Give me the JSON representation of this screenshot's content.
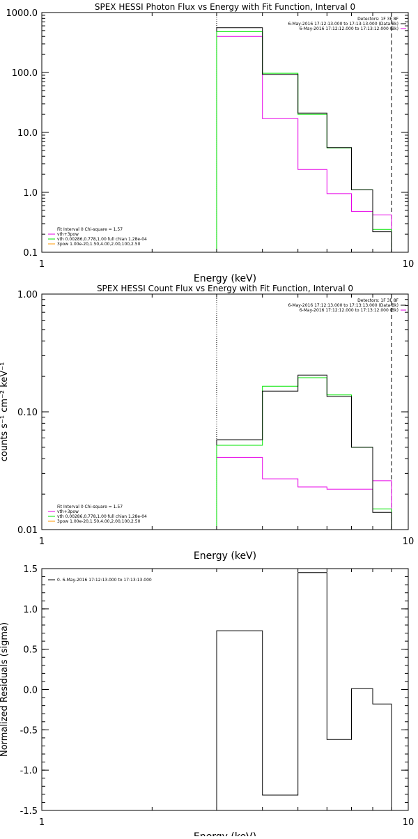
{
  "window": {
    "title": ""
  },
  "colors": {
    "black": "#000000",
    "magenta": "#e600e6",
    "green": "#00e600",
    "orange": "#ff9900"
  },
  "chart_data": [
    {
      "type": "line",
      "id": "photon",
      "title": "SPEX HESSI Photon Flux vs Energy with Fit Function, Interval 0",
      "xlabel": "Energy (keV)",
      "ylabel": "",
      "xscale": "log",
      "yscale": "log",
      "xlim": [
        1,
        10
      ],
      "ylim": [
        0.1,
        1000
      ],
      "xticks": [
        {
          "v": 1,
          "label": "1"
        },
        {
          "v": 10,
          "label": "10"
        }
      ],
      "yticks": [
        {
          "v": 0.1,
          "label": "0.1"
        },
        {
          "v": 1,
          "label": "1.0"
        },
        {
          "v": 10,
          "label": "10.0"
        },
        {
          "v": 100,
          "label": "100.0"
        },
        {
          "v": 1000,
          "label": "1000.0"
        }
      ],
      "bin_edges": [
        3.0,
        4.0,
        5.0,
        6.0,
        7.0,
        8.0,
        9.0
      ],
      "vlines": [
        {
          "x": 3.0,
          "style": "dotted"
        },
        {
          "x": 9.0,
          "style": "dashed"
        }
      ],
      "series": [
        {
          "name": "",
          "color": "black",
          "values": [
            560,
            93,
            21,
            5.6,
            1.1,
            0.22
          ]
        },
        {
          "name": "",
          "color": "green",
          "values": [
            480,
            97,
            20,
            5.5,
            1.1,
            0.24
          ]
        },
        {
          "name": "",
          "color": "magenta",
          "values": [
            400,
            17,
            2.4,
            0.95,
            0.48,
            0.42
          ]
        }
      ],
      "info": [
        "Detectors: 1F 3F 8F",
        "6-May-2016 17:12:13.000 to 17:13:13.000 (Data-Bk)",
        "6-May-2016 17:12:12.000 to 17:13:12.000 (Bk)"
      ],
      "info_colors": [
        "black",
        "magenta"
      ],
      "legend": [
        {
          "label": "Fit Interval 0   Chi-square = 1.57",
          "color": ""
        },
        {
          "label": "vth+3pow",
          "color": "magenta"
        },
        {
          "label": "vth 0.00286,0.778,1.00  full chian 1.28e-04",
          "color": "green"
        },
        {
          "label": "3pow 1.00e-20,1.50,4.00,2.00,100,2.50",
          "color": "orange"
        }
      ],
      "legend_placement": "bottom-left"
    },
    {
      "type": "line",
      "id": "count",
      "title": "SPEX HESSI Count Flux vs Energy with Fit Function, Interval 0",
      "xlabel": "Energy (keV)",
      "ylabel": "counts s⁻¹ cm⁻² keV⁻¹",
      "xscale": "log",
      "yscale": "log",
      "xlim": [
        1,
        10
      ],
      "ylim": [
        0.01,
        1
      ],
      "xticks": [
        {
          "v": 1,
          "label": "1"
        },
        {
          "v": 10,
          "label": "10"
        }
      ],
      "yticks": [
        {
          "v": 0.01,
          "label": "0.01"
        },
        {
          "v": 0.1,
          "label": "0.10"
        },
        {
          "v": 1,
          "label": "1.00"
        }
      ],
      "bin_edges": [
        3.0,
        4.0,
        5.0,
        6.0,
        7.0,
        8.0,
        9.0
      ],
      "vlines": [
        {
          "x": 3.0,
          "style": "dotted"
        },
        {
          "x": 9.0,
          "style": "dashed"
        }
      ],
      "series": [
        {
          "name": "",
          "color": "black",
          "values": [
            0.058,
            0.15,
            0.205,
            0.135,
            0.05,
            0.014
          ]
        },
        {
          "name": "",
          "color": "green",
          "values": [
            0.052,
            0.165,
            0.195,
            0.139,
            0.05,
            0.015
          ]
        },
        {
          "name": "",
          "color": "magenta",
          "values": [
            0.041,
            0.027,
            0.023,
            0.022,
            0.022,
            0.026
          ]
        }
      ],
      "info": [
        "Detectors: 1F 3F 8F",
        "6-May-2016 17:12:13.000 to 17:13:13.000 (Data-Bk)",
        "6-May-2016 17:12:12.000 to 17:13:12.000 (Bk)"
      ],
      "info_colors": [
        "black",
        "magenta"
      ],
      "legend": [
        {
          "label": "Fit Interval 0   Chi-square = 1.57",
          "color": ""
        },
        {
          "label": "vth+3pow",
          "color": "magenta"
        },
        {
          "label": "vth 0.00286,0.778,1.00  full chian 1.28e-04",
          "color": "green"
        },
        {
          "label": "3pow 1.00e-20,1.50,4.00,2.00,100,2.50",
          "color": "orange"
        }
      ],
      "legend_placement": "bottom-left"
    },
    {
      "type": "line",
      "id": "resid",
      "title": "",
      "xlabel": "Energy (keV)",
      "ylabel": "Normalized Residuals (sigma)",
      "xscale": "log",
      "yscale": "linear",
      "xlim": [
        1,
        10
      ],
      "ylim": [
        -1.5,
        1.5
      ],
      "xticks": [
        {
          "v": 1,
          "label": "1"
        },
        {
          "v": 10,
          "label": "10"
        }
      ],
      "yticks": [
        {
          "v": -1.5,
          "label": "-1.5"
        },
        {
          "v": -1.0,
          "label": "-1.0"
        },
        {
          "v": -0.5,
          "label": "-0.5"
        },
        {
          "v": 0.0,
          "label": "0.0"
        },
        {
          "v": 0.5,
          "label": "0.5"
        },
        {
          "v": 1.0,
          "label": "1.0"
        },
        {
          "v": 1.5,
          "label": "1.5"
        }
      ],
      "bin_edges": [
        3.0,
        4.0,
        5.0,
        6.0,
        7.0,
        8.0,
        9.0
      ],
      "vlines": [],
      "series": [
        {
          "name": "",
          "color": "black",
          "values": [
            0.73,
            -1.31,
            1.45,
            -0.62,
            0.01,
            -0.18
          ]
        }
      ],
      "info": [],
      "info_colors": [],
      "legend": [
        {
          "label": "0.  6-May-2016 17:12:13.000 to 17:13:13.000",
          "color": "black"
        }
      ],
      "legend_placement": "top-left"
    }
  ]
}
